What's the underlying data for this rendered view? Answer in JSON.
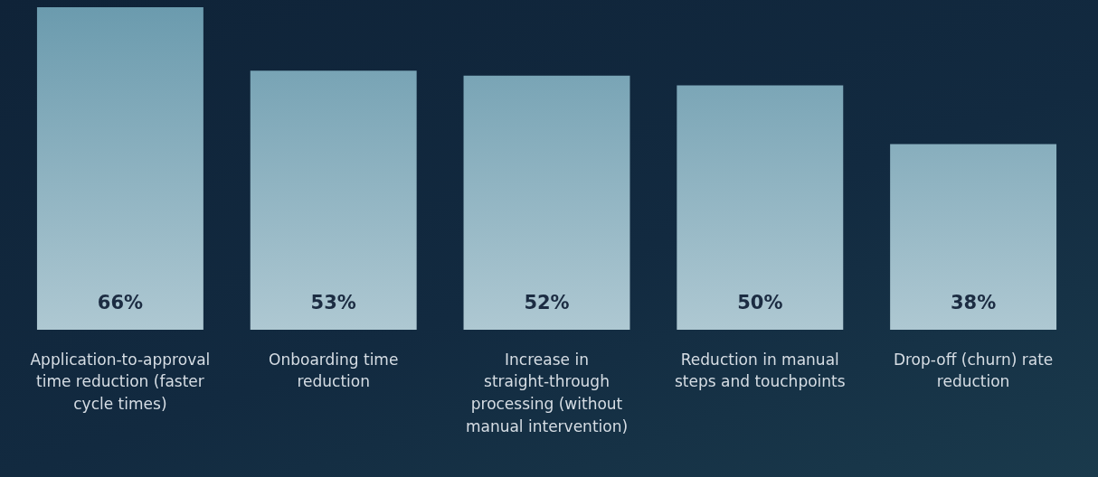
{
  "chart_data": {
    "type": "bar",
    "categories": [
      "Application-to-approval time reduction (faster cycle times)",
      "Onboarding time reduction",
      "Increase in straight-through processing (without manual intervention)",
      "Reduction in manual steps and touchpoints",
      "Drop-off (churn) rate reduction"
    ],
    "values": [
      66,
      53,
      52,
      50,
      38
    ],
    "value_labels": [
      "66%",
      "53%",
      "52%",
      "50%",
      "38%"
    ],
    "color": "#6b9bae",
    "ylim": [
      0,
      66
    ],
    "grid": false,
    "legend": false
  }
}
